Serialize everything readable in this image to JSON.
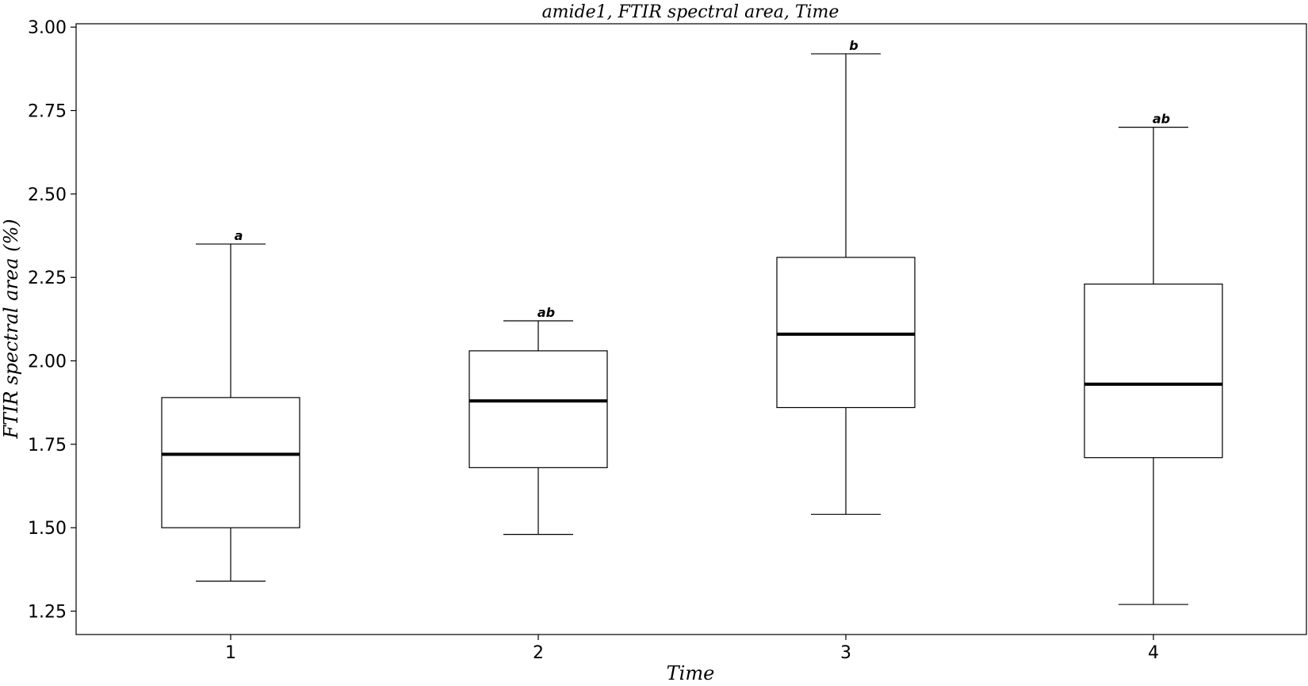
{
  "chart_data": {
    "type": "box",
    "title": "amide1, FTIR spectral area, Time",
    "xlabel": "Time",
    "ylabel": "FTIR spectral area (%)",
    "categories": [
      "1",
      "2",
      "3",
      "4"
    ],
    "ylim": [
      1.18,
      3.01
    ],
    "yticks": [
      1.25,
      1.5,
      1.75,
      2.0,
      2.25,
      2.5,
      2.75,
      3.0
    ],
    "ytick_labels": [
      "1.25",
      "1.50",
      "1.75",
      "2.00",
      "2.25",
      "2.50",
      "2.75",
      "3.00"
    ],
    "boxes": [
      {
        "category": "1",
        "whisker_low": 1.34,
        "q1": 1.5,
        "median": 1.72,
        "q3": 1.89,
        "whisker_high": 2.35,
        "group_label": "a"
      },
      {
        "category": "2",
        "whisker_low": 1.48,
        "q1": 1.68,
        "median": 1.88,
        "q3": 2.03,
        "whisker_high": 2.12,
        "group_label": "ab"
      },
      {
        "category": "3",
        "whisker_low": 1.54,
        "q1": 1.86,
        "median": 2.08,
        "q3": 2.31,
        "whisker_high": 2.92,
        "group_label": "b"
      },
      {
        "category": "4",
        "whisker_low": 1.27,
        "q1": 1.71,
        "median": 1.93,
        "q3": 2.23,
        "whisker_high": 2.7,
        "group_label": "ab"
      }
    ],
    "grid": false,
    "legend": "none",
    "colors": {
      "box_edge": "#000000",
      "median": "#000000",
      "box_fill": "#ffffff"
    }
  }
}
